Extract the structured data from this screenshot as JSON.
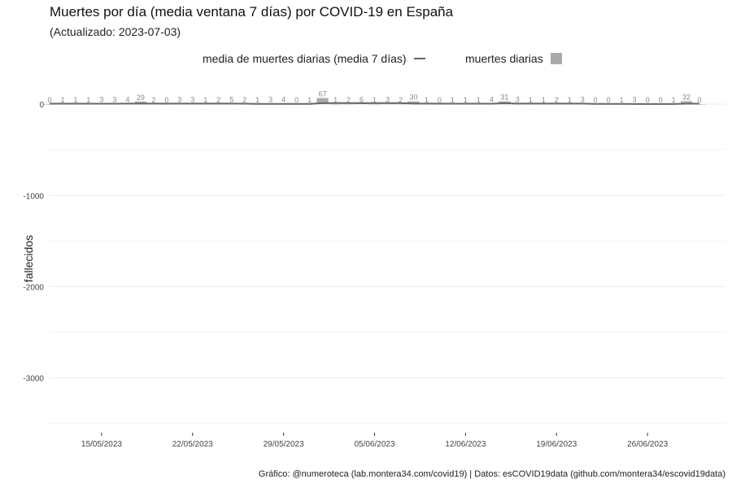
{
  "chart_data": {
    "type": "bar",
    "title": "Muertes por día (media ventana 7 días) por COVID-19 en España",
    "subtitle": "(Actualizado: 2023-07-03)",
    "ylabel": "fallecidos",
    "xlabel": "",
    "ylim": [
      -3600,
      250
    ],
    "yticks": [
      0,
      -1000,
      -2000,
      -3000
    ],
    "xlim": [
      "2023-05-11",
      "2023-07-02"
    ],
    "xticks": [
      "2023-05-15",
      "2023-05-22",
      "2023-05-29",
      "2023-06-05",
      "2023-06-12",
      "2023-06-19",
      "2023-06-26"
    ],
    "xtick_labels": [
      "15/05/2023",
      "22/05/2023",
      "29/05/2023",
      "05/06/2023",
      "12/06/2023",
      "19/06/2023",
      "26/06/2023"
    ],
    "grid": true,
    "legend_position": "top",
    "legend": [
      {
        "label": "media de muertes diarias (media 7 días)",
        "marker": "line",
        "color": "#666666"
      },
      {
        "label": "muertes diarias",
        "marker": "square",
        "color": "#aaaaaa"
      }
    ],
    "series": [
      {
        "name": "muertes diarias",
        "start_date": "2023-05-11",
        "values": [
          0,
          1,
          1,
          1,
          3,
          3,
          4,
          29,
          2,
          0,
          3,
          3,
          1,
          2,
          5,
          2,
          1,
          3,
          4,
          0,
          1,
          67,
          1,
          2,
          6,
          1,
          3,
          2,
          30,
          1,
          0,
          1,
          1,
          1,
          4,
          31,
          3,
          1,
          1,
          2,
          1,
          3,
          0,
          0,
          1,
          3,
          0,
          0,
          1,
          32,
          0
        ]
      },
      {
        "name": "media de muertes diarias (media 7 días)",
        "start_date": "2023-05-11",
        "values": [
          5,
          5,
          5,
          5,
          5,
          5,
          6,
          6,
          6,
          6,
          6,
          6,
          6,
          6,
          6,
          5,
          2,
          2,
          3,
          2,
          2,
          12,
          12,
          11,
          12,
          12,
          12,
          12,
          6,
          6,
          6,
          5,
          5,
          5,
          5,
          9,
          6,
          6,
          6,
          6,
          6,
          6,
          2,
          2,
          2,
          1,
          1,
          1,
          1,
          5,
          5
        ]
      }
    ]
  },
  "caption": "Gráfico: @numeroteca (lab.montera34.com/covid19) | Datos: esCOVID19data (github.com/montera34/escovid19data)"
}
